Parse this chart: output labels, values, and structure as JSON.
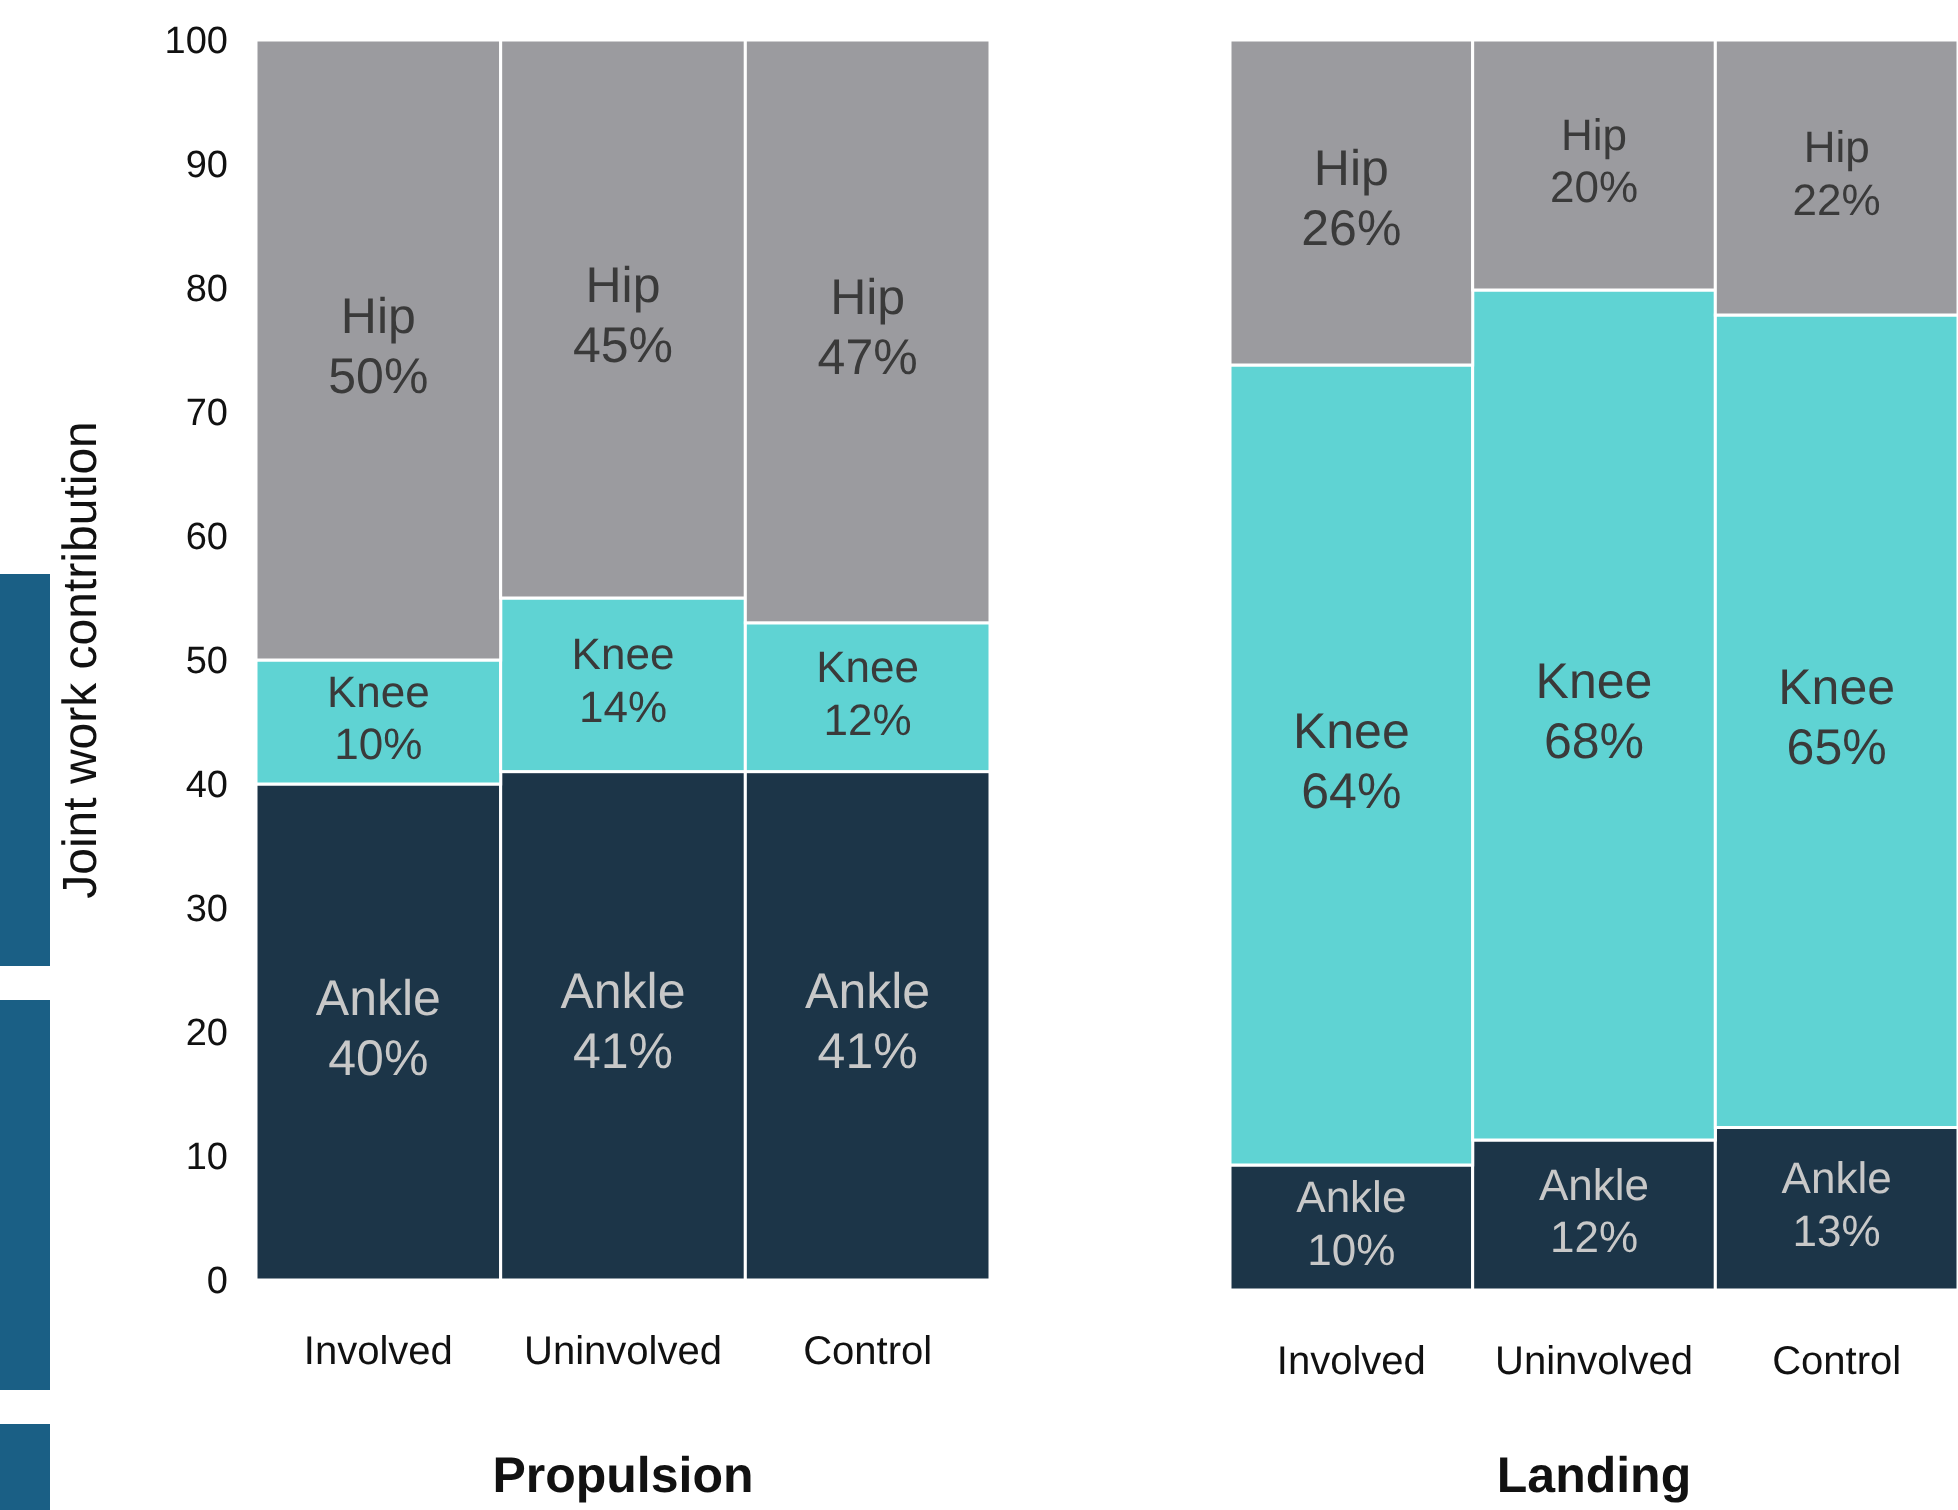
{
  "chart_data": [
    {
      "type": "bar",
      "stacked": true,
      "title": "Propulsion",
      "ylabel": "Joint work contribution",
      "categories": [
        "Involved",
        "Uninvolved",
        "Control"
      ],
      "ylim": [
        0,
        100
      ],
      "yticks": [
        0,
        10,
        20,
        30,
        40,
        50,
        60,
        70,
        80,
        90,
        100
      ],
      "series": [
        {
          "name": "Ankle",
          "color": "#1c3548",
          "values": [
            40,
            41,
            41
          ],
          "value_labels": [
            "40%",
            "41%",
            "41%"
          ]
        },
        {
          "name": "Knee",
          "color": "#5fd3d3",
          "values": [
            10,
            14,
            12
          ],
          "value_labels": [
            "10%",
            "14%",
            "12%"
          ]
        },
        {
          "name": "Hip",
          "color": "#9b9b9f",
          "values": [
            50,
            45,
            47
          ],
          "value_labels": [
            "50%",
            "45%",
            "47%"
          ]
        }
      ]
    },
    {
      "type": "bar",
      "stacked": true,
      "title": "Landing",
      "categories": [
        "Involved",
        "Uninvolved",
        "Control"
      ],
      "ylim": [
        0,
        100
      ],
      "tick_labels": "x",
      "series": [
        {
          "name": "Ankle",
          "color": "#1c3548",
          "values": [
            10,
            12,
            13
          ],
          "value_labels": [
            "10%",
            "12%",
            "13%"
          ]
        },
        {
          "name": "Knee",
          "color": "#5fd3d3",
          "values": [
            64,
            68,
            65
          ],
          "value_labels": [
            "64%",
            "68%",
            "65%"
          ]
        },
        {
          "name": "Hip",
          "color": "#9b9b9f",
          "values": [
            26,
            20,
            22
          ],
          "value_labels": [
            "26%",
            "20%",
            "22%"
          ]
        }
      ]
    }
  ]
}
